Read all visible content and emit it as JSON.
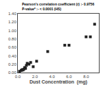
{
  "chart_data": {
    "type": "scatter",
    "x": [
      0.2,
      0.4,
      0.5,
      0.6,
      0.7,
      0.8,
      0.9,
      1.0,
      1.1,
      1.3,
      1.5,
      1.8,
      2.2,
      3.5,
      5.5,
      6.0,
      8.0,
      8.5,
      9.0
    ],
    "values": [
      0.03,
      0.05,
      0.07,
      0.06,
      0.08,
      0.12,
      0.1,
      0.17,
      0.22,
      0.2,
      0.24,
      0.14,
      0.27,
      0.5,
      0.65,
      0.65,
      0.85,
      0.85,
      1.15
    ],
    "xlabel": "Dust Concentration  (mg)",
    "annotations": [
      "Pearson's correlation coefficient (r) :- 0.9756",
      "P-value* :- < 0.0001 (HS)"
    ],
    "xlim": [
      0,
      9.5
    ],
    "ylim": [
      0,
      1.4
    ],
    "xticks": [
      {
        "value": 0.0,
        "label": "0.0"
      },
      {
        "value": 2.0,
        "label": "2.0"
      },
      {
        "value": 4.0,
        "label": "4.0"
      },
      {
        "value": 6.0,
        "label": "6.0"
      },
      {
        "value": 8.0,
        "label": "8.0"
      }
    ],
    "yticks": [
      {
        "value": 0.0,
        "label": "0.00"
      },
      {
        "value": 0.2,
        "label": "0.20"
      },
      {
        "value": 0.4,
        "label": "0.40"
      },
      {
        "value": 0.6,
        "label": "0.60"
      },
      {
        "value": 0.8,
        "label": "0.80"
      },
      {
        "value": 1.0,
        "label": "1.00"
      },
      {
        "value": 1.2,
        "label": "1.20"
      },
      {
        "value": 1.4,
        "label": "1.40"
      }
    ],
    "color": "#222222",
    "marker": "square",
    "grid": false
  }
}
